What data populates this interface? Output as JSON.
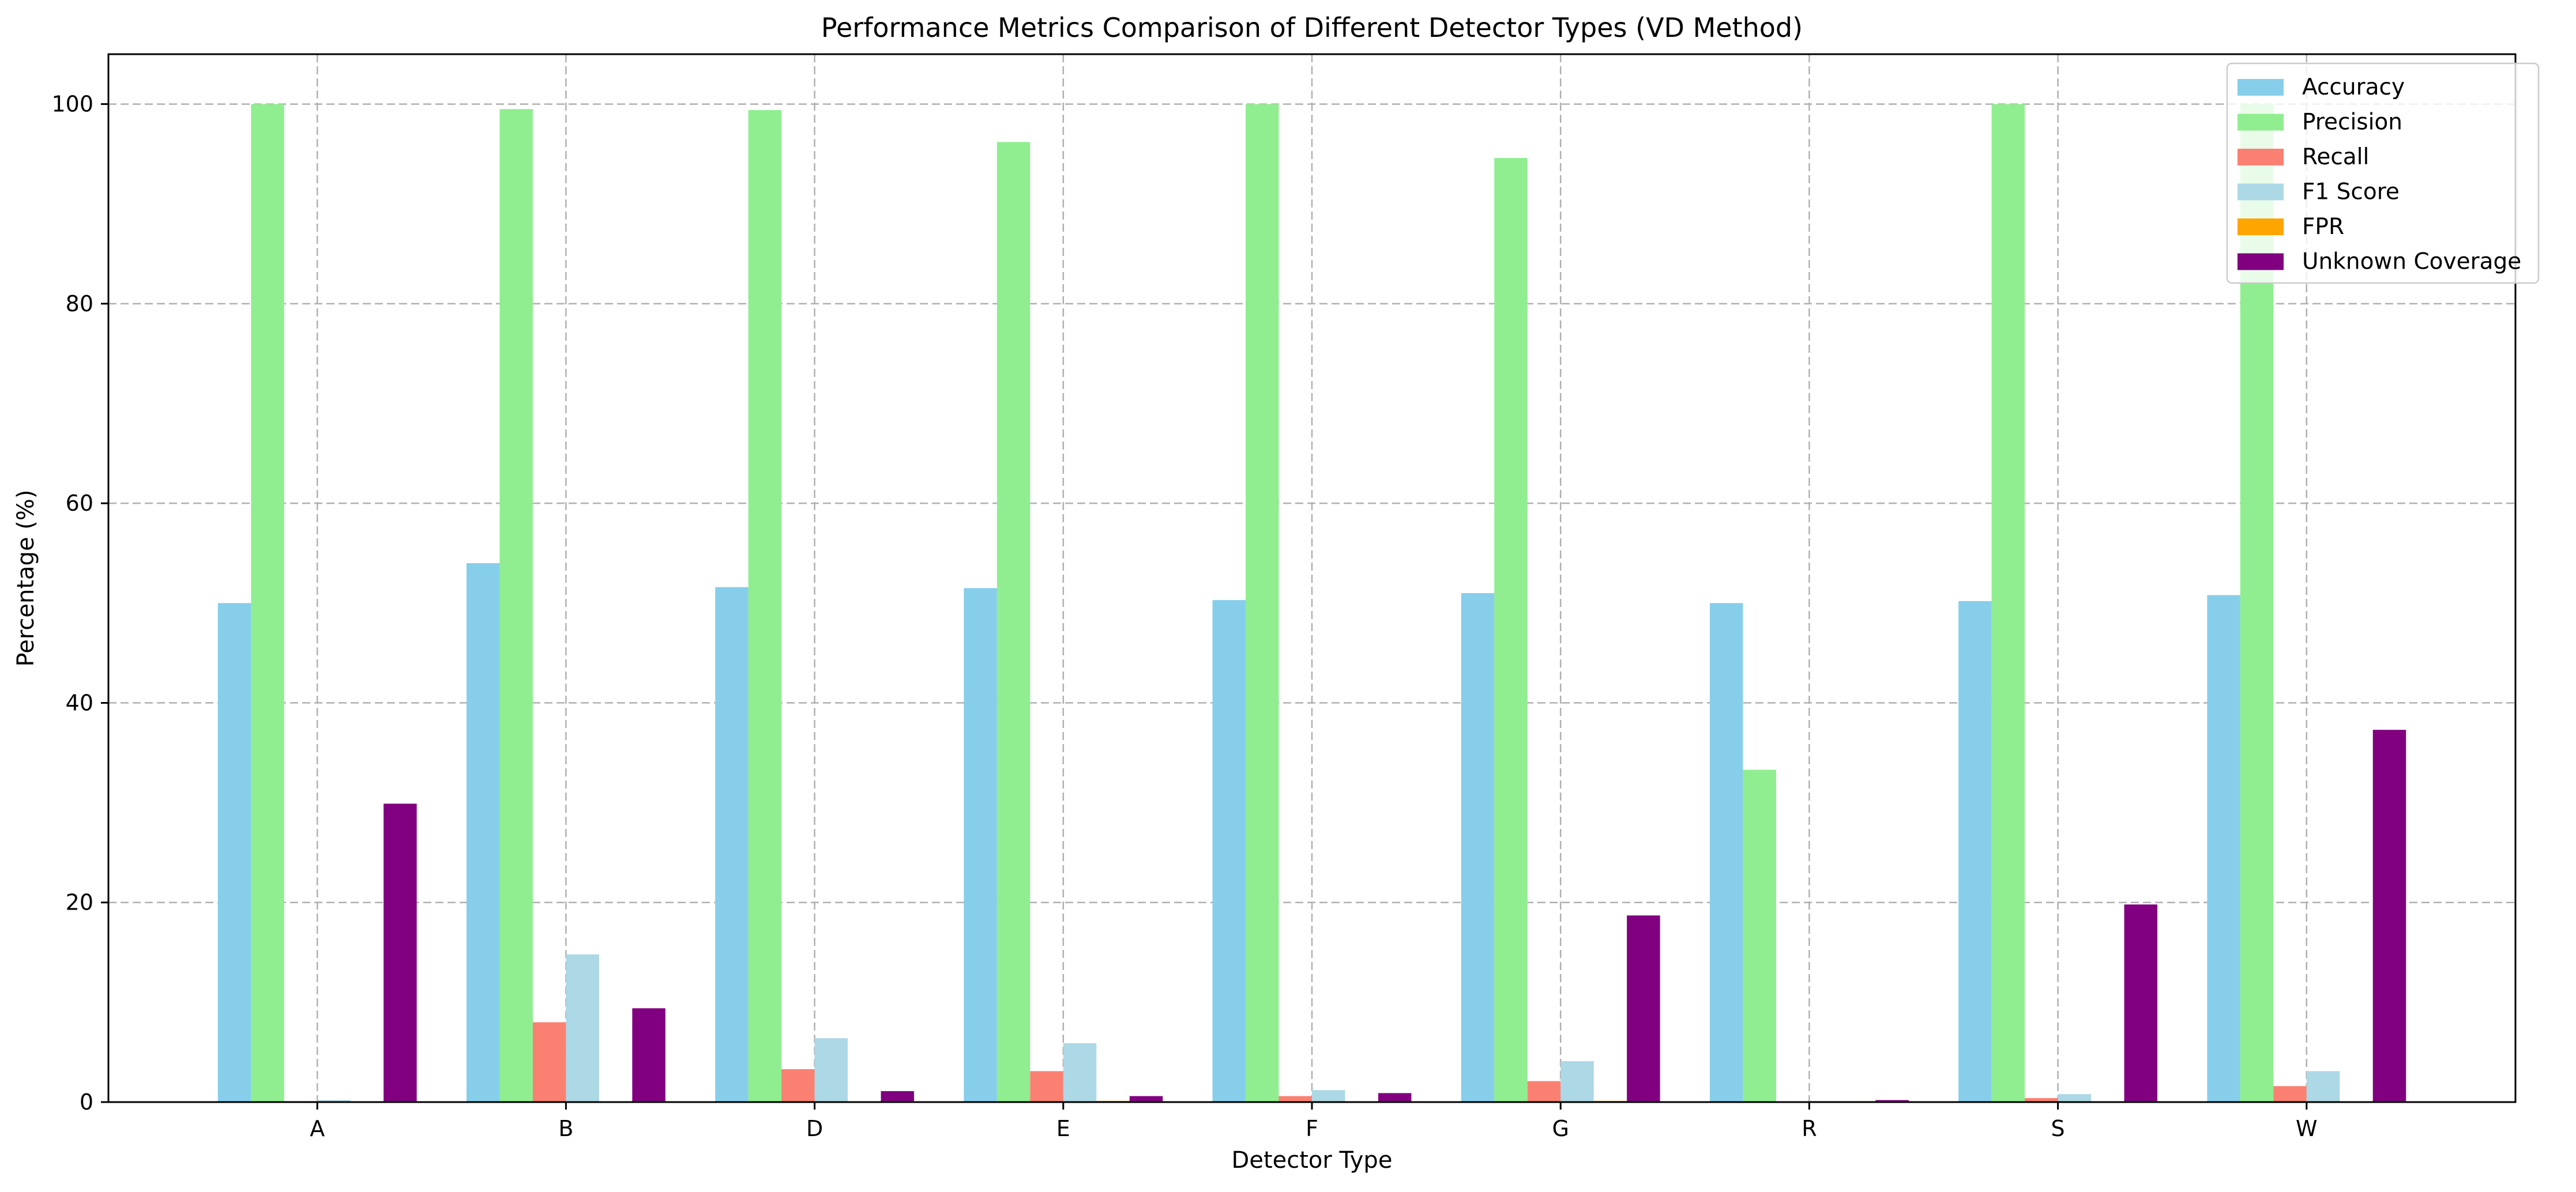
{
  "chart_data": {
    "type": "bar",
    "title": "Performance Metrics Comparison of Different Detector Types (VD Method)",
    "xlabel": "Detector Type",
    "ylabel": "Percentage (%)",
    "ylim": [
      0,
      105
    ],
    "yticks": [
      0,
      20,
      40,
      60,
      80,
      100
    ],
    "grid": true,
    "legend_position": "top-right",
    "categories": [
      "A",
      "B",
      "D",
      "E",
      "F",
      "G",
      "R",
      "S",
      "W"
    ],
    "series": [
      {
        "name": "Accuracy",
        "color": "#87CEEB",
        "values": [
          50.0,
          54.0,
          51.6,
          51.5,
          50.3,
          51.0,
          50.0,
          50.2,
          50.8
        ]
      },
      {
        "name": "Precision",
        "color": "#90EE90",
        "values": [
          100.0,
          99.5,
          99.4,
          96.2,
          100.0,
          94.6,
          33.3,
          100.0,
          100.0
        ]
      },
      {
        "name": "Recall",
        "color": "#FA8072",
        "values": [
          0.1,
          8.0,
          3.3,
          3.1,
          0.6,
          2.1,
          0.05,
          0.4,
          1.6
        ]
      },
      {
        "name": "F1 Score",
        "color": "#ADD8E6",
        "values": [
          0.2,
          14.8,
          6.4,
          5.9,
          1.2,
          4.1,
          0.1,
          0.8,
          3.1
        ]
      },
      {
        "name": "FPR",
        "color": "#FFA500",
        "values": [
          0.0,
          0.04,
          0.02,
          0.12,
          0.0,
          0.12,
          0.1,
          0.0,
          0.0
        ]
      },
      {
        "name": "Unknown Coverage",
        "color": "#800080",
        "values": [
          29.9,
          9.4,
          1.1,
          0.6,
          0.9,
          18.7,
          0.2,
          19.8,
          37.3
        ]
      }
    ]
  }
}
